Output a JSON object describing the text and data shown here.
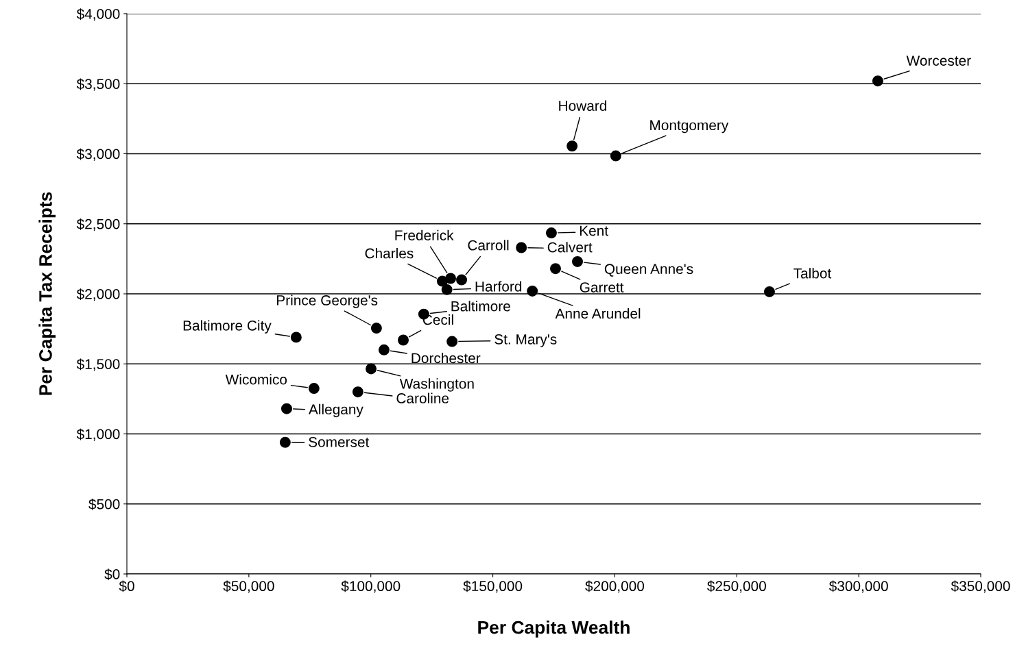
{
  "chart_data": {
    "type": "scatter",
    "xlabel": "Per Capita Wealth",
    "ylabel": "Per Capita Tax Receipts",
    "x": [
      307800,
      182500,
      200400,
      174000,
      161700,
      184700,
      175700,
      263400,
      166200,
      129300,
      132700,
      137200,
      131200,
      121700,
      102300,
      113300,
      133300,
      69400,
      105400,
      100100,
      76700,
      94700,
      65500,
      64900
    ],
    "series": [
      {
        "color": "#000000",
        "values": [
          3520,
          3055,
          2985,
          2435,
          2330,
          2230,
          2180,
          2015,
          2020,
          2090,
          2110,
          2100,
          2030,
          1855,
          1755,
          1670,
          1660,
          1690,
          1600,
          1465,
          1325,
          1300,
          1180,
          940
        ]
      }
    ],
    "annotations": [
      {
        "text": "Worcester",
        "x": 307800,
        "y": 3520
      },
      {
        "text": "Howard",
        "x": 182500,
        "y": 3055
      },
      {
        "text": "Montgomery",
        "x": 200400,
        "y": 2985
      },
      {
        "text": "Kent",
        "x": 174000,
        "y": 2435
      },
      {
        "text": "Calvert",
        "x": 161700,
        "y": 2330
      },
      {
        "text": "Queen Anne's",
        "x": 184700,
        "y": 2230
      },
      {
        "text": "Garrett",
        "x": 175700,
        "y": 2180
      },
      {
        "text": "Talbot",
        "x": 263400,
        "y": 2015
      },
      {
        "text": "Anne Arundel",
        "x": 166200,
        "y": 2020
      },
      {
        "text": "Charles",
        "x": 129300,
        "y": 2090
      },
      {
        "text": "Frederick",
        "x": 132700,
        "y": 2110
      },
      {
        "text": "Carroll",
        "x": 137200,
        "y": 2100
      },
      {
        "text": "Harford",
        "x": 131200,
        "y": 2030
      },
      {
        "text": "Baltimore",
        "x": 121700,
        "y": 1855
      },
      {
        "text": "Prince George's",
        "x": 102300,
        "y": 1755
      },
      {
        "text": "Cecil",
        "x": 113300,
        "y": 1670
      },
      {
        "text": "St. Mary's",
        "x": 133300,
        "y": 1660
      },
      {
        "text": "Baltimore City",
        "x": 69400,
        "y": 1690
      },
      {
        "text": "Dorchester",
        "x": 105400,
        "y": 1600
      },
      {
        "text": "Washington",
        "x": 100100,
        "y": 1465
      },
      {
        "text": "Wicomico",
        "x": 76700,
        "y": 1325
      },
      {
        "text": "Caroline",
        "x": 94700,
        "y": 1300
      },
      {
        "text": "Allegany",
        "x": 65500,
        "y": 1180
      },
      {
        "text": "Somerset",
        "x": 64900,
        "y": 940
      }
    ],
    "xlim": [
      0,
      350000
    ],
    "xticks": [
      {
        "value": 0,
        "label": "$0"
      },
      {
        "value": 50000,
        "label": "$50,000"
      },
      {
        "value": 100000,
        "label": "$100,000"
      },
      {
        "value": 150000,
        "label": "$150,000"
      },
      {
        "value": 200000,
        "label": "$200,000"
      },
      {
        "value": 250000,
        "label": "$250,000"
      },
      {
        "value": 300000,
        "label": "$300,000"
      },
      {
        "value": 350000,
        "label": "$350,000"
      }
    ],
    "ylim": [
      0,
      4000
    ],
    "yticks": [
      {
        "value": 0,
        "label": "$0"
      },
      {
        "value": 500,
        "label": "$500"
      },
      {
        "value": 1000,
        "label": "$1,000"
      },
      {
        "value": 1500,
        "label": "$1,500"
      },
      {
        "value": 2000,
        "label": "$2,000"
      },
      {
        "value": 2500,
        "label": "$2,500"
      },
      {
        "value": 3000,
        "label": "$3,000"
      },
      {
        "value": 3500,
        "label": "$3,500"
      },
      {
        "value": 4000,
        "label": "$4,000"
      }
    ],
    "grid": "y",
    "marker": "circle"
  }
}
